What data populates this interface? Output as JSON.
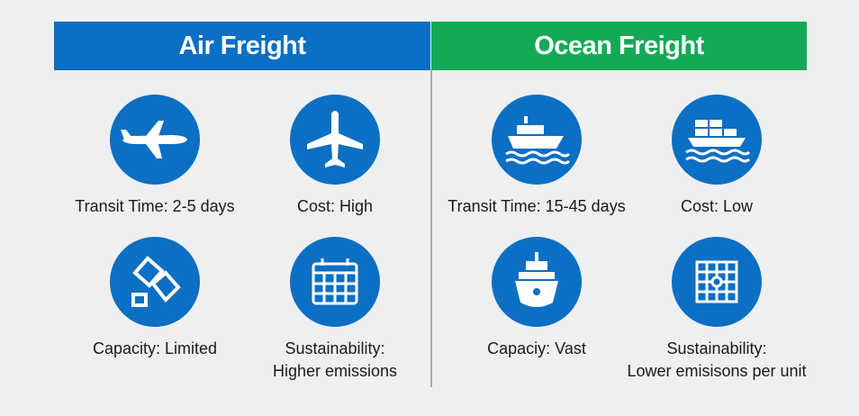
{
  "columns": [
    {
      "title": "Air Freight",
      "color": "#0b6fc3",
      "items": [
        {
          "icon": "airplane-side-icon",
          "lines": [
            "Transit Time: 2-5 days"
          ]
        },
        {
          "icon": "airplane-top-icon",
          "lines": [
            "Cost: High"
          ]
        },
        {
          "icon": "packages-icon",
          "lines": [
            "Capacity: Limited"
          ]
        },
        {
          "icon": "calendar-grid-icon",
          "lines": [
            "Sustainability:",
            "Higher emissions"
          ]
        }
      ]
    },
    {
      "title": "Ocean Freight",
      "color": "#13aa57",
      "items": [
        {
          "icon": "ship-icon",
          "lines": [
            "Transit Time: 15-45 days"
          ]
        },
        {
          "icon": "container-ship-icon",
          "lines": [
            "Cost: Low"
          ]
        },
        {
          "icon": "ship-front-icon",
          "lines": [
            "Capaciy: Vast"
          ]
        },
        {
          "icon": "grid-icon",
          "lines": [
            "Sustainability:",
            "Lower emisisons per unit"
          ]
        }
      ]
    }
  ]
}
